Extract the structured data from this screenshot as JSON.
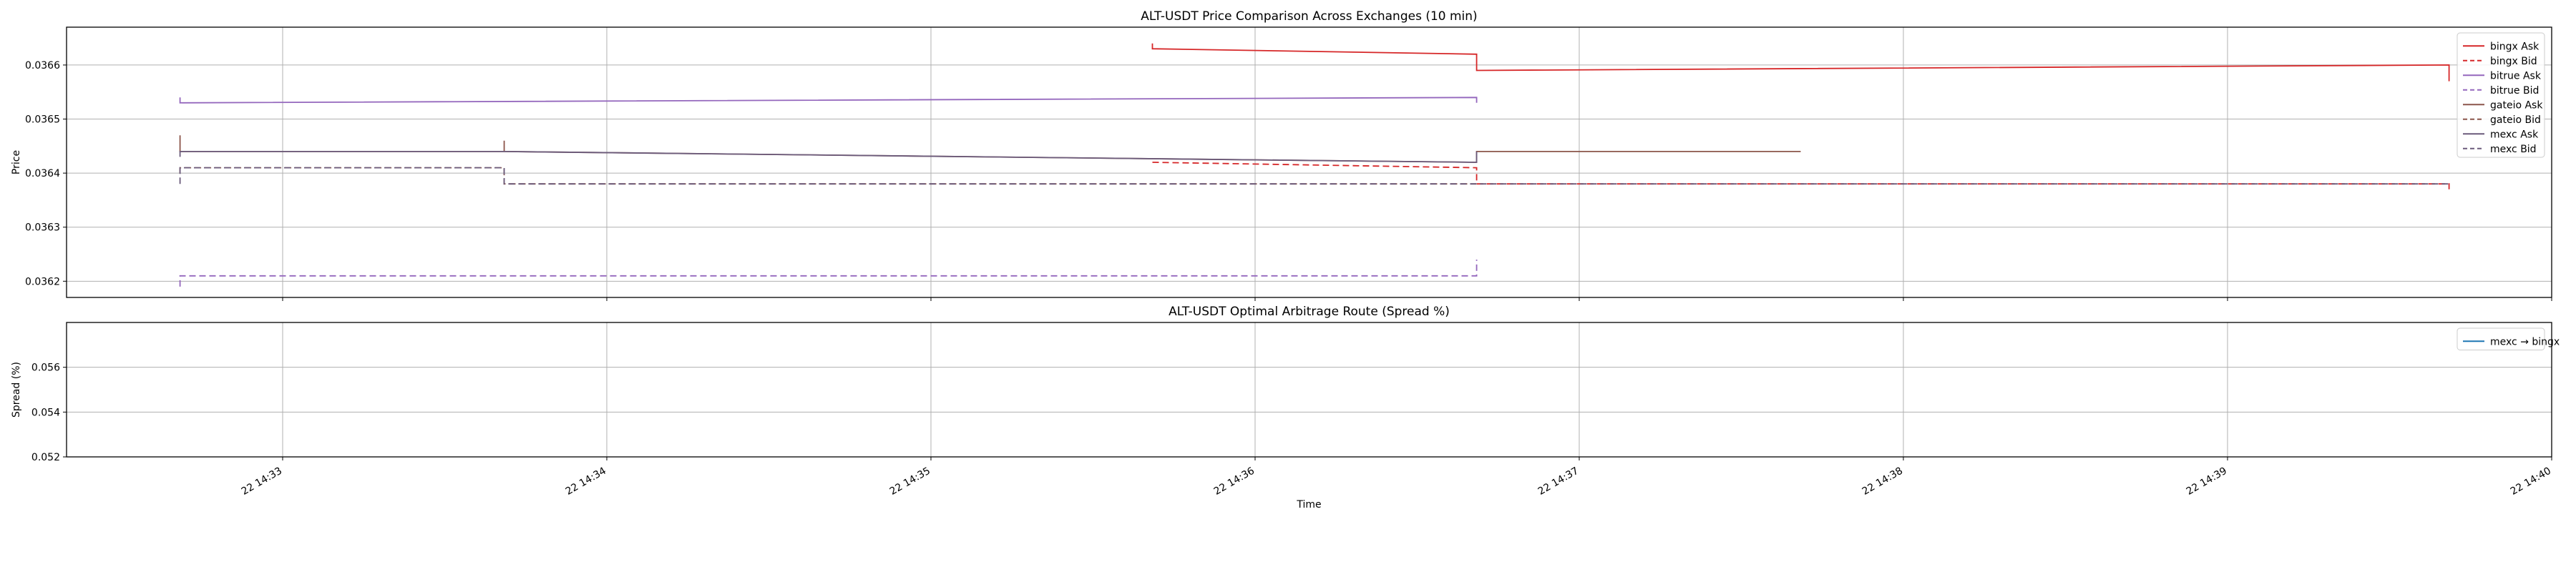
{
  "chart_data": [
    {
      "type": "line",
      "title": "ALT-USDT Price Comparison Across Exchanges (10 min)",
      "xlabel": "",
      "ylabel": "Price",
      "x_range": [
        "22 14:32:20",
        "22 14:40:00"
      ],
      "ylim": [
        0.03617,
        0.03667
      ],
      "yticks": [
        0.0362,
        0.0363,
        0.0364,
        0.0365,
        0.0366
      ],
      "ytick_labels": [
        "0.0362",
        "0.0363",
        "0.0364",
        "0.0365",
        "0.0366"
      ],
      "grid": true,
      "legend_position": "top-right",
      "series": [
        {
          "name": "bingx Ask",
          "color": "#d62728",
          "dash": "solid",
          "points": [
            [
              "22 14:35:41",
              0.03664
            ],
            [
              "22 14:35:41",
              0.03663
            ],
            [
              "22 14:36:41",
              0.03662
            ],
            [
              "22 14:36:41",
              0.03659
            ],
            [
              "22 14:39:41",
              0.0366
            ],
            [
              "22 14:39:41",
              0.03657
            ]
          ]
        },
        {
          "name": "bingx Bid",
          "color": "#d62728",
          "dash": "dashed",
          "points": [
            [
              "22 14:35:41",
              0.03642
            ],
            [
              "22 14:36:41",
              0.03641
            ],
            [
              "22 14:36:41",
              0.03638
            ],
            [
              "22 14:39:41",
              0.03638
            ],
            [
              "22 14:39:41",
              0.03637
            ]
          ]
        },
        {
          "name": "bitrue Ask",
          "color": "#9467bd",
          "dash": "solid",
          "points": [
            [
              "22 14:32:41",
              0.03654
            ],
            [
              "22 14:32:41",
              0.03653
            ],
            [
              "22 14:36:41",
              0.03654
            ],
            [
              "22 14:36:41",
              0.03653
            ]
          ]
        },
        {
          "name": "bitrue Bid",
          "color": "#9467bd",
          "dash": "dashed",
          "points": [
            [
              "22 14:32:41",
              0.03619
            ],
            [
              "22 14:32:41",
              0.03621
            ],
            [
              "22 14:36:41",
              0.03621
            ],
            [
              "22 14:36:41",
              0.03624
            ]
          ]
        },
        {
          "name": "gateio Ask",
          "color": "#8c564b",
          "dash": "solid",
          "points": [
            [
              "22 14:32:41",
              0.03647
            ],
            [
              "22 14:32:41",
              0.03644
            ],
            [
              "22 14:33:41",
              0.03644
            ],
            [
              "22 14:33:41",
              0.03646
            ],
            [
              "22 14:33:41",
              0.03644
            ],
            [
              "22 14:36:41",
              0.03642
            ],
            [
              "22 14:36:41",
              0.03644
            ],
            [
              "22 14:37:41",
              0.03644
            ]
          ]
        },
        {
          "name": "gateio Bid",
          "color": "#8c564b",
          "dash": "dashed",
          "points": [
            [
              "22 14:32:41",
              0.0364
            ],
            [
              "22 14:32:41",
              0.03641
            ],
            [
              "22 14:33:41",
              0.03641
            ],
            [
              "22 14:33:41",
              0.03638
            ],
            [
              "22 14:36:41",
              0.03638
            ]
          ]
        },
        {
          "name": "mexc Ask",
          "color": "#6b5b7b",
          "dash": "solid",
          "points": [
            [
              "22 14:32:41",
              0.03643
            ],
            [
              "22 14:32:41",
              0.03644
            ],
            [
              "22 14:33:41",
              0.03644
            ],
            [
              "22 14:36:41",
              0.03642
            ],
            [
              "22 14:36:41",
              0.03644
            ]
          ]
        },
        {
          "name": "mexc Bid",
          "color": "#6b5b7b",
          "dash": "dashed",
          "points": [
            [
              "22 14:32:41",
              0.03638
            ],
            [
              "22 14:32:41",
              0.03641
            ],
            [
              "22 14:33:41",
              0.03641
            ],
            [
              "22 14:33:41",
              0.03638
            ],
            [
              "22 14:36:41",
              0.03638
            ],
            [
              "22 14:36:41",
              0.03638
            ],
            [
              "22 14:39:41",
              0.03638
            ]
          ]
        }
      ]
    },
    {
      "type": "line",
      "title": "ALT-USDT Optimal Arbitrage Route (Spread %)",
      "xlabel": "Time",
      "ylabel": "Spread (%)",
      "x_range": [
        "22 14:32:20",
        "22 14:40:00"
      ],
      "ylim": [
        0.052,
        0.058
      ],
      "yticks": [
        0.052,
        0.054,
        0.056
      ],
      "ytick_labels": [
        "0.052",
        "0.054",
        "0.056"
      ],
      "xtick_labels": [
        "22 14:33",
        "22 14:34",
        "22 14:35",
        "22 14:36",
        "22 14:37",
        "22 14:38",
        "22 14:39",
        "22 14:40"
      ],
      "grid": true,
      "legend_position": "top-right",
      "series": [
        {
          "name": "mexc → bingx",
          "color": "#1f77b4",
          "dash": "solid",
          "points": []
        }
      ]
    }
  ]
}
